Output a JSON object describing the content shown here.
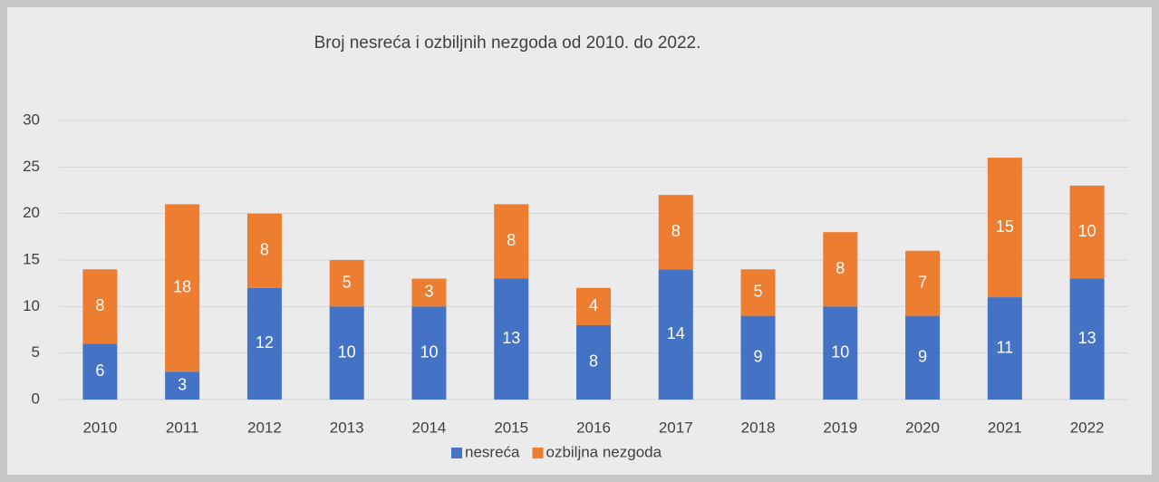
{
  "chart_data": {
    "type": "stacked_bar",
    "title": "Broj nesreća i ozbiljnih nezgoda od 2010. do 2022.",
    "categories": [
      "2010",
      "2011",
      "2012",
      "2013",
      "2014",
      "2015",
      "2016",
      "2017",
      "2018",
      "2019",
      "2020",
      "2021",
      "2022"
    ],
    "series": [
      {
        "name": "nesreća",
        "color": "#4472c4",
        "values": [
          6,
          3,
          12,
          10,
          10,
          13,
          8,
          14,
          9,
          10,
          9,
          11,
          13
        ]
      },
      {
        "name": "ozbiljna nezgoda",
        "color": "#ed7d31",
        "values": [
          8,
          18,
          8,
          5,
          3,
          8,
          4,
          8,
          5,
          8,
          7,
          15,
          10
        ]
      }
    ],
    "ylim": [
      0,
      30
    ],
    "yticks": [
      0,
      5,
      10,
      15,
      20,
      25,
      30
    ],
    "grid": true,
    "legend": "bottom"
  }
}
